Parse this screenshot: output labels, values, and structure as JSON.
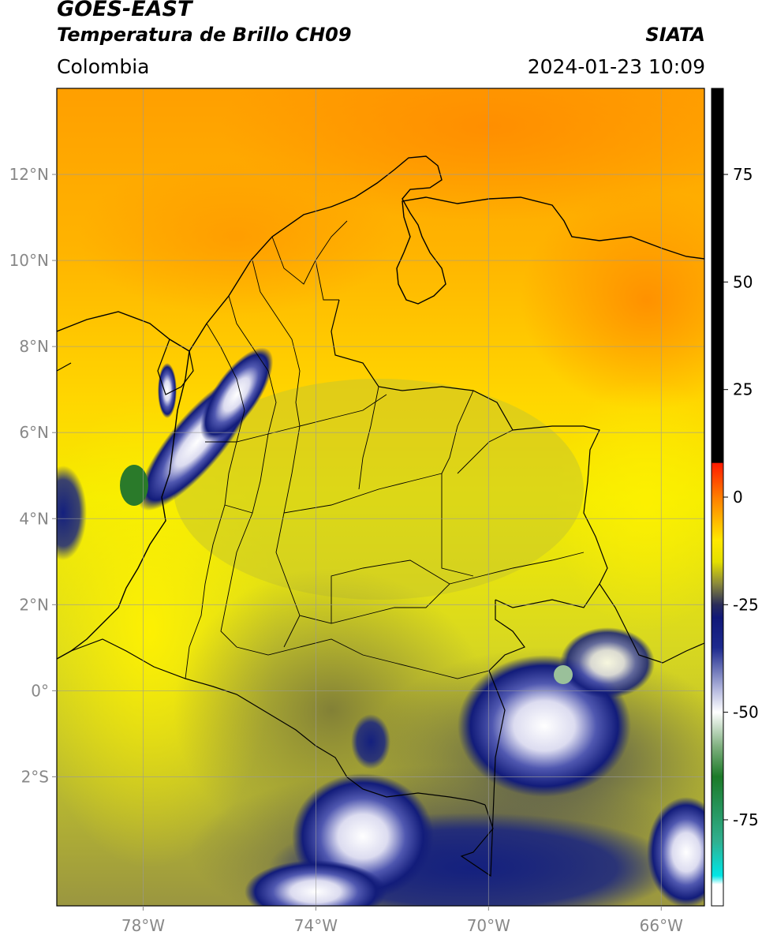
{
  "header": {
    "satellite": "GOES-EAST",
    "product": "Temperatura de Brillo CH09",
    "region": "Colombia",
    "agency": "SIATA",
    "datetime": "2024-01-23 10:09"
  },
  "map": {
    "lon_range": [
      -80,
      -65
    ],
    "lat_range": [
      -5,
      14
    ],
    "lat_ticks": [
      {
        "value": 12,
        "label": "12°N"
      },
      {
        "value": 10,
        "label": "10°N"
      },
      {
        "value": 8,
        "label": "8°N"
      },
      {
        "value": 6,
        "label": "6°N"
      },
      {
        "value": 4,
        "label": "4°N"
      },
      {
        "value": 2,
        "label": "2°N"
      },
      {
        "value": 0,
        "label": "0°"
      },
      {
        "value": -2,
        "label": "2°S"
      }
    ],
    "lon_ticks": [
      {
        "value": -78,
        "label": "78°W"
      },
      {
        "value": -74,
        "label": "74°W"
      },
      {
        "value": -70,
        "label": "70°W"
      },
      {
        "value": -66,
        "label": "66°W"
      }
    ],
    "gridlines": true
  },
  "colorbar": {
    "range": [
      -95,
      95
    ],
    "ticks": [
      {
        "value": 75,
        "label": "75"
      },
      {
        "value": 50,
        "label": "50"
      },
      {
        "value": 25,
        "label": "25"
      },
      {
        "value": 0,
        "label": "0"
      },
      {
        "value": -25,
        "label": "-25"
      },
      {
        "value": -50,
        "label": "-50"
      },
      {
        "value": -75,
        "label": "-75"
      }
    ],
    "stops": [
      {
        "value": 95,
        "color": "#000000"
      },
      {
        "value": 8,
        "color": "#000000"
      },
      {
        "value": 7.9,
        "color": "#ff1a00"
      },
      {
        "value": 0,
        "color": "#ff7d00"
      },
      {
        "value": -10,
        "color": "#ffe800"
      },
      {
        "value": -15,
        "color": "#e4e000"
      },
      {
        "value": -20,
        "color": "#8d8c3a"
      },
      {
        "value": -25,
        "color": "#2a2c5a"
      },
      {
        "value": -28,
        "color": "#101878"
      },
      {
        "value": -35,
        "color": "#1d2a8e"
      },
      {
        "value": -45,
        "color": "#b8bce0"
      },
      {
        "value": -50,
        "color": "#ffffff"
      },
      {
        "value": -58,
        "color": "#7fb07f"
      },
      {
        "value": -65,
        "color": "#1c7a28"
      },
      {
        "value": -80,
        "color": "#30b090"
      },
      {
        "value": -88,
        "color": "#00e6e6"
      },
      {
        "value": -90,
        "color": "#ffffff"
      },
      {
        "value": -95,
        "color": "#ffffff"
      }
    ]
  }
}
